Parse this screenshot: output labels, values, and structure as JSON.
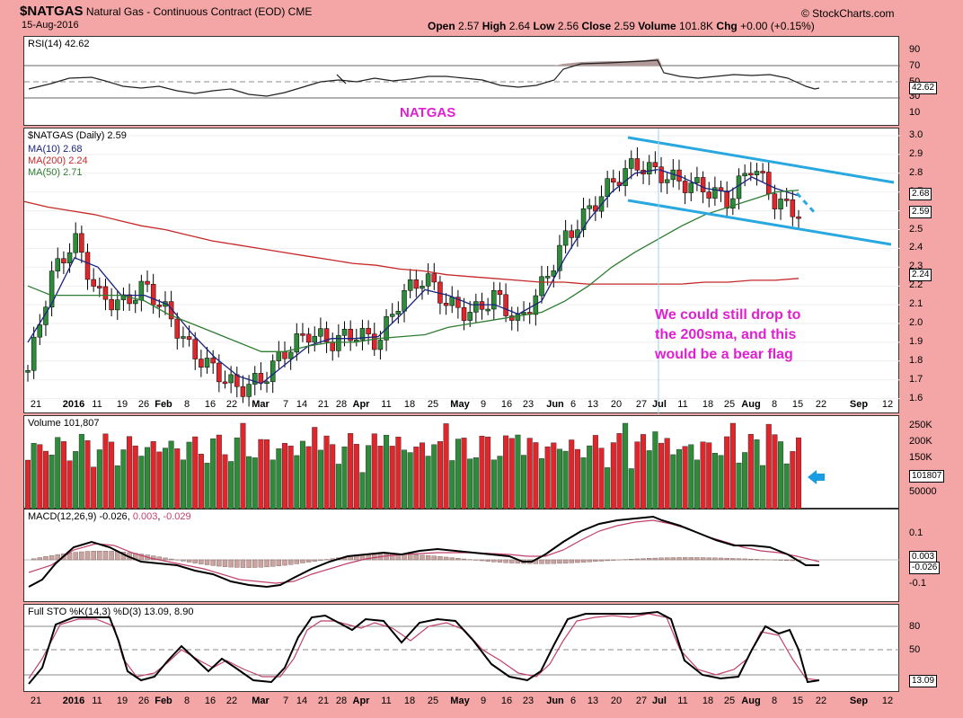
{
  "header": {
    "symbol": "$NATGAS",
    "name": "Natural Gas - Continuous Contract (EOD)",
    "exchange": "CME",
    "date": "15-Aug-2016",
    "brand": "© StockCharts.com",
    "open_label": "Open",
    "open": "2.57",
    "high_label": "High",
    "high": "2.64",
    "low_label": "Low",
    "low": "2.56",
    "close_label": "Close",
    "close": "2.59",
    "volume_label": "Volume",
    "volume": "101.8K",
    "chg_label": "Chg",
    "chg": "+0.00 (+0.15%)"
  },
  "rsi_panel": {
    "label": "RSI(14) 42.62",
    "ticks": [
      "90",
      "70",
      "50",
      "30",
      "10"
    ],
    "value_tag": "42.62",
    "annotation": "NATGAS"
  },
  "price_panel": {
    "label": "$NATGAS (Daily) 2.59",
    "legend": [
      {
        "text": "MA(10) 2.68",
        "color": "#1a237e"
      },
      {
        "text": "MA(200) 2.24",
        "color": "#c62828"
      },
      {
        "text": "MA(50) 2.71",
        "color": "#2e7d32"
      }
    ],
    "ticks": [
      "3.0",
      "2.9",
      "2.8",
      "2.7",
      "2.6",
      "2.5",
      "2.4",
      "2.3",
      "2.2",
      "2.1",
      "2.0",
      "1.9",
      "1.8",
      "1.7",
      "1.6"
    ],
    "tags": [
      "2.68",
      "2.59",
      "2.24"
    ],
    "annotation_lines": [
      "We could still drop to",
      "the 200sma, and this",
      "would be a bear flag"
    ]
  },
  "x_axis": {
    "labels": [
      "21",
      "2016",
      "11",
      "19",
      "26",
      "Feb",
      "8",
      "16",
      "22",
      "Mar",
      "7",
      "14",
      "21",
      "28",
      "Apr",
      "11",
      "18",
      "25",
      "May",
      "9",
      "16",
      "23",
      "Jun",
      "6",
      "13",
      "20",
      "27",
      "Jul",
      "11",
      "18",
      "25",
      "Aug",
      "8",
      "15",
      "22",
      "Sep",
      "12"
    ]
  },
  "volume_panel": {
    "label": "Volume 101,807",
    "ticks": [
      "250K",
      "200K",
      "150K",
      "100K",
      "50000"
    ],
    "value_tag": "101807"
  },
  "macd_panel": {
    "label_name": "MACD(12,26,9)",
    "macd": "-0.026",
    "signal": "0.003",
    "hist": "-0.029",
    "ticks": [
      "0.1",
      "0.0",
      "-0.1"
    ],
    "tags": [
      "0.003",
      "-0.026"
    ]
  },
  "sto_panel": {
    "label": "Full STO %K(14,3) %D(3) 13.09, 8.90",
    "ticks": [
      "80",
      "50",
      "20"
    ],
    "value_tag": "13.09"
  },
  "colors": {
    "up": "#2e8b3a",
    "down": "#e0262b",
    "channel": "#29a8e0",
    "annotation": "#e020d0",
    "arrow": "#1a9de0"
  },
  "chart_data": {
    "type": "line",
    "title": "$NATGAS Natural Gas - Continuous Contract (EOD)",
    "x": [
      "2015-12-21",
      "2016-01-04",
      "2016-01-11",
      "2016-01-19",
      "2016-01-26",
      "2016-02-01",
      "2016-02-08",
      "2016-02-16",
      "2016-02-22",
      "2016-03-01",
      "2016-03-07",
      "2016-03-14",
      "2016-03-21",
      "2016-03-28",
      "2016-04-04",
      "2016-04-11",
      "2016-04-18",
      "2016-04-25",
      "2016-05-02",
      "2016-05-09",
      "2016-05-16",
      "2016-05-23",
      "2016-06-01",
      "2016-06-06",
      "2016-06-13",
      "2016-06-20",
      "2016-06-27",
      "2016-07-05",
      "2016-07-11",
      "2016-07-18",
      "2016-07-25",
      "2016-08-01",
      "2016-08-08",
      "2016-08-15"
    ],
    "series": [
      {
        "name": "$NATGAS",
        "values": [
          1.75,
          2.25,
          2.45,
          2.15,
          2.1,
          2.2,
          2.05,
          1.85,
          1.75,
          1.65,
          1.7,
          1.85,
          1.95,
          1.9,
          1.95,
          1.9,
          2.15,
          2.25,
          2.1,
          2.05,
          2.15,
          2.0,
          2.2,
          2.45,
          2.6,
          2.75,
          2.85,
          2.8,
          2.75,
          2.72,
          2.65,
          2.85,
          2.65,
          2.59
        ]
      },
      {
        "name": "MA(10)",
        "values": [
          1.9,
          2.1,
          2.35,
          2.3,
          2.15,
          2.15,
          2.1,
          1.95,
          1.82,
          1.72,
          1.68,
          1.78,
          1.88,
          1.92,
          1.92,
          1.93,
          2.05,
          2.18,
          2.15,
          2.1,
          2.1,
          2.05,
          2.12,
          2.35,
          2.55,
          2.7,
          2.8,
          2.82,
          2.78,
          2.72,
          2.7,
          2.78,
          2.72,
          2.68
        ]
      },
      {
        "name": "MA(200)",
        "values": [
          2.65,
          2.62,
          2.6,
          2.58,
          2.55,
          2.52,
          2.5,
          2.47,
          2.44,
          2.42,
          2.4,
          2.38,
          2.36,
          2.34,
          2.32,
          2.31,
          2.29,
          2.28,
          2.26,
          2.25,
          2.24,
          2.23,
          2.22,
          2.22,
          2.21,
          2.21,
          2.21,
          2.21,
          2.21,
          2.22,
          2.22,
          2.23,
          2.23,
          2.24
        ]
      },
      {
        "name": "MA(50)",
        "values": [
          2.2,
          2.15,
          2.15,
          2.15,
          2.15,
          2.12,
          2.05,
          2.0,
          1.95,
          1.9,
          1.85,
          1.85,
          1.88,
          1.9,
          1.9,
          1.92,
          1.93,
          1.94,
          1.98,
          2.0,
          2.02,
          2.04,
          2.06,
          2.12,
          2.2,
          2.3,
          2.38,
          2.45,
          2.52,
          2.58,
          2.62,
          2.66,
          2.7,
          2.71
        ]
      }
    ],
    "xlabel": "",
    "ylabel": "",
    "ylim": [
      1.55,
      3.05
    ],
    "grid": true
  }
}
